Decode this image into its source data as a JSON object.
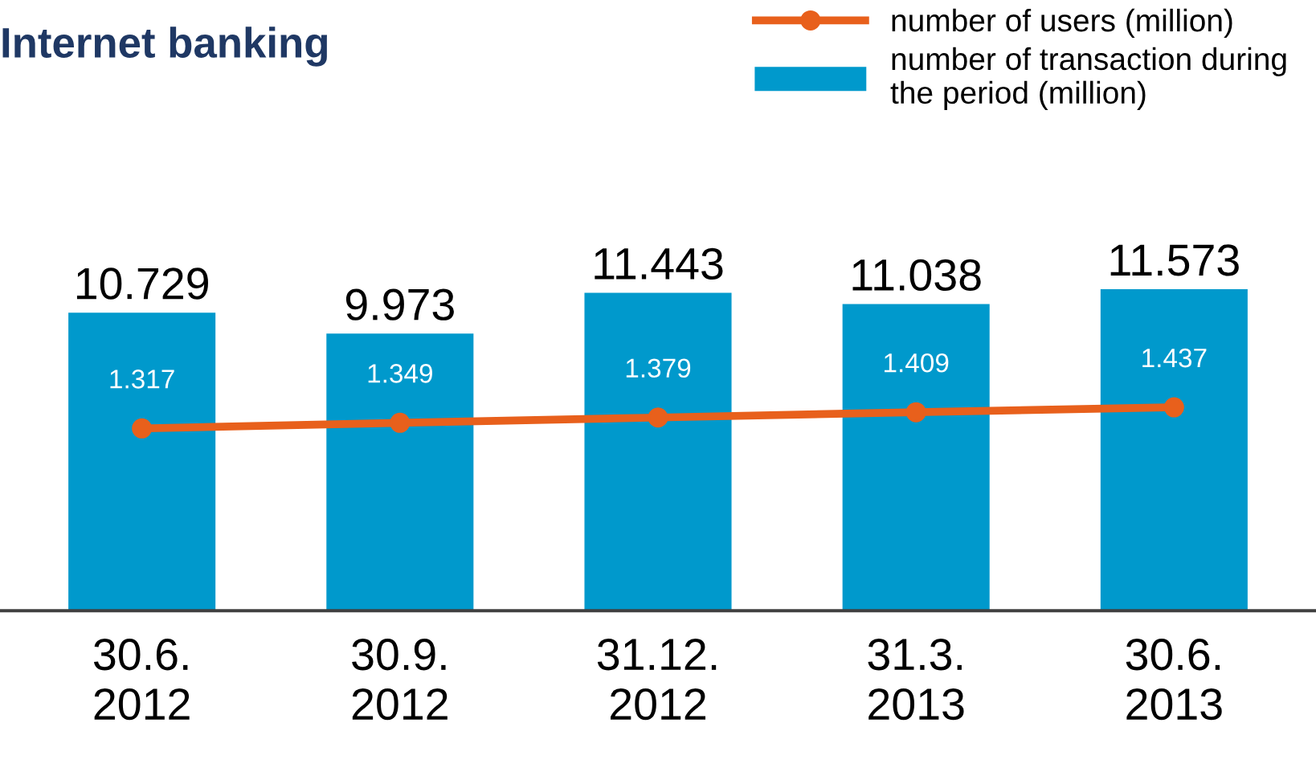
{
  "chart_data": {
    "type": "bar",
    "title": "Internet banking",
    "categories": [
      "30.6.\n2012",
      "30.9.\n2012",
      "31.12.\n2012",
      "31.3.\n2013",
      "30.6.\n2013"
    ],
    "series": [
      {
        "name": "number of transaction during\nthe period (million)",
        "color": "#0099cc",
        "values": [
          10.729,
          9.973,
          11.443,
          11.038,
          11.573
        ]
      },
      {
        "name": "number of users (million)",
        "type": "line",
        "axis": "y2",
        "color": "#e8601c",
        "marker": "circle",
        "values": [
          1.317,
          1.349,
          1.379,
          1.409,
          1.437
        ]
      }
    ],
    "data_labels": true,
    "legend": "top right",
    "grid": false
  }
}
